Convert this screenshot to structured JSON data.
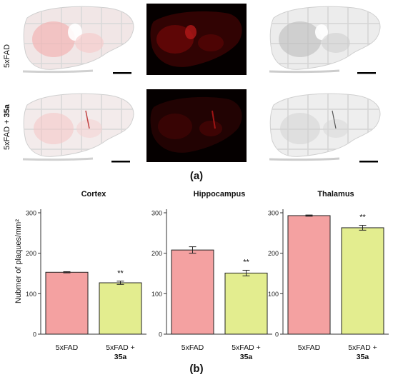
{
  "panel_a": {
    "row_labels": [
      {
        "text": "5xFAD",
        "bold_suffix": ""
      },
      {
        "text": "5xFAD + ",
        "bold_suffix": "35a"
      }
    ],
    "caption": "(a)",
    "image_colors": {
      "red_stain": "#e0202a",
      "gray_stain": "#222222",
      "dark_bg": "#050000"
    }
  },
  "panel_b": {
    "caption": "(b)",
    "ylabel": "Nubmer of plaques/mm²"
  },
  "chart_data": [
    {
      "type": "bar",
      "title": "Cortex",
      "categories": [
        "5xFAD",
        "5xFAD + 35a"
      ],
      "category_lines": [
        [
          "5xFAD"
        ],
        [
          "5xFAD +",
          "35a"
        ]
      ],
      "values": [
        153,
        127
      ],
      "errors": [
        1.5,
        4
      ],
      "significance": [
        "",
        "**"
      ],
      "ylim": [
        0,
        300
      ],
      "yticks": [
        0,
        100,
        200,
        300
      ],
      "colors": [
        "#f4a1a1",
        "#e3ed8f"
      ],
      "edge": "#222222",
      "grid": false
    },
    {
      "type": "bar",
      "title": "Hippocampus",
      "categories": [
        "5xFAD",
        "5xFAD + 35a"
      ],
      "category_lines": [
        [
          "5xFAD"
        ],
        [
          "5xFAD +",
          "35a"
        ]
      ],
      "values": [
        208,
        151
      ],
      "errors": [
        8,
        7
      ],
      "significance": [
        "",
        "**"
      ],
      "ylim": [
        0,
        300
      ],
      "yticks": [
        0,
        100,
        200,
        300
      ],
      "colors": [
        "#f4a1a1",
        "#e3ed8f"
      ],
      "edge": "#222222",
      "grid": false
    },
    {
      "type": "bar",
      "title": "Thalamus",
      "categories": [
        "5xFAD",
        "5xFAD + 35a"
      ],
      "category_lines": [
        [
          "5xFAD"
        ],
        [
          "5xFAD +",
          "35a"
        ]
      ],
      "values": [
        293,
        263
      ],
      "errors": [
        1.5,
        6
      ],
      "significance": [
        "",
        "**"
      ],
      "ylim": [
        0,
        300
      ],
      "yticks": [
        0,
        100,
        200,
        300
      ],
      "colors": [
        "#f4a1a1",
        "#e3ed8f"
      ],
      "edge": "#222222",
      "grid": false
    }
  ]
}
